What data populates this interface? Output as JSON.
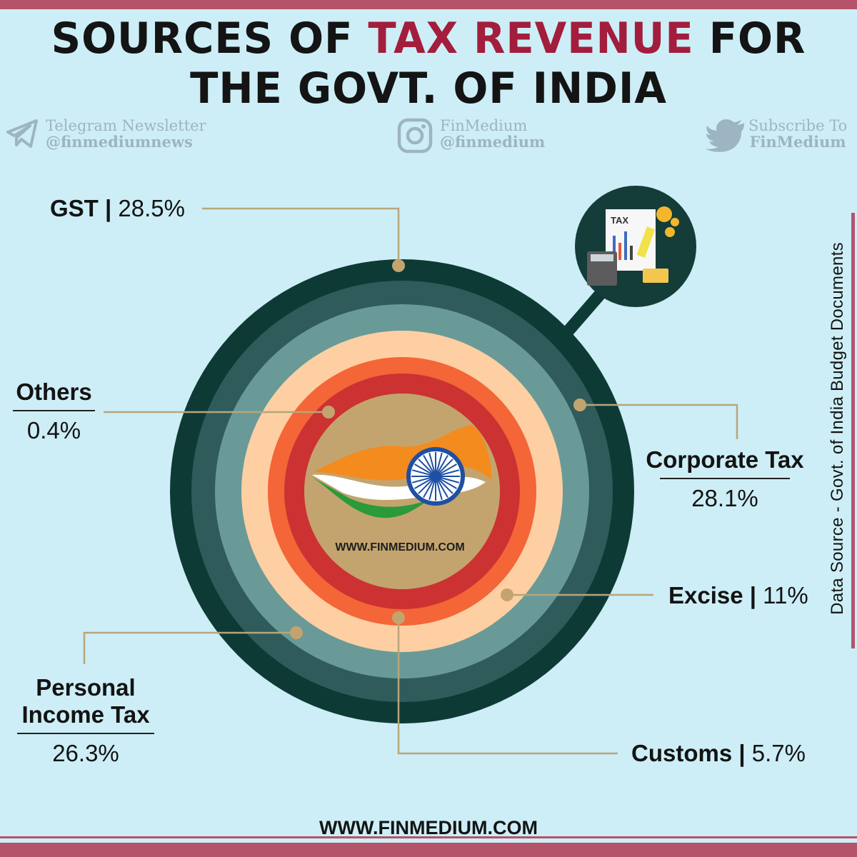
{
  "header": {
    "title_line1_pre": "SOURCES OF",
    "title_line1_accent": "TAX REVENUE",
    "title_line1_post": "FOR",
    "title_line2": "THE GOVT. OF INDIA"
  },
  "social": {
    "telegram": {
      "name": "Telegram Newsletter",
      "handle": "@finmediumnews",
      "icon": "telegram-icon"
    },
    "instagram": {
      "name": "FinMedium",
      "handle": "@finmedium",
      "icon": "instagram-icon"
    },
    "twitter": {
      "name": "Subscribe To",
      "handle": "FinMedium",
      "icon": "twitter-icon"
    }
  },
  "chart_data": {
    "type": "pie",
    "categories": [
      "GST",
      "Corporate Tax",
      "Personal Income Tax",
      "Excise",
      "Customs",
      "Others"
    ],
    "values": [
      28.5,
      28.1,
      26.3,
      11,
      5.7,
      0.4
    ],
    "labels": [
      {
        "name": "GST",
        "value": "28.5%"
      },
      {
        "name": "Corporate Tax",
        "value": "28.1%"
      },
      {
        "name": "Personal Income Tax",
        "name_line1": "Personal",
        "name_line2": "Income Tax",
        "value": "26.3%"
      },
      {
        "name": "Excise",
        "value": "11%"
      },
      {
        "name": "Customs",
        "value": "5.7%"
      },
      {
        "name": "Others",
        "value": "0.4%"
      }
    ],
    "ring_colors": [
      "#0e3a36",
      "#2f5c5b",
      "#699a98",
      "#fdcfa2",
      "#f46537",
      "#cc3232",
      "#c4a46e"
    ]
  },
  "center": {
    "site": "WWW.FINMEDIUM.COM",
    "icon": "india-flag-chakra-icon"
  },
  "badge": {
    "text": "TAX",
    "icon": "tax-documents-icon"
  },
  "source_note": "Data Source - Govt. of India Budget Documents",
  "footer": {
    "site": "WWW.FINMEDIUM.COM"
  }
}
